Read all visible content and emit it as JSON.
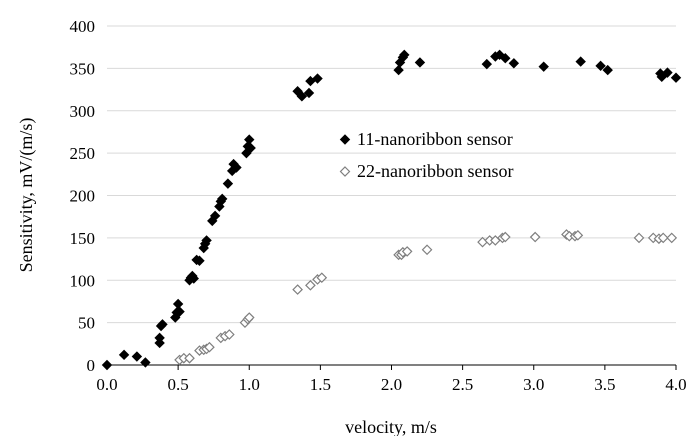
{
  "chart_data": {
    "type": "scatter",
    "title": "",
    "xlabel": "velocity, m/s",
    "ylabel": "Sensitivity, mV/(m/s)",
    "xlim": [
      0,
      4
    ],
    "ylim": [
      0,
      400
    ],
    "xticks": [
      0.0,
      0.5,
      1.0,
      1.5,
      2.0,
      2.5,
      3.0,
      3.5,
      4.0
    ],
    "xtick_labels": [
      "0.0",
      "0.5",
      "1.0",
      "1.5",
      "2.0",
      "2.5",
      "3.0",
      "3.5",
      "4.0"
    ],
    "yticks": [
      0,
      50,
      100,
      150,
      200,
      250,
      300,
      350,
      400
    ],
    "ytick_labels": [
      "0",
      "50",
      "100",
      "150",
      "200",
      "250",
      "300",
      "350",
      "400"
    ],
    "grid": "horizontal",
    "legend_position": "center-right",
    "series": [
      {
        "name": "11-nanoribbon sensor",
        "marker": "filled-diamond",
        "color": "#000000",
        "points": [
          [
            0.0,
            0
          ],
          [
            0.12,
            12
          ],
          [
            0.21,
            10
          ],
          [
            0.27,
            3
          ],
          [
            0.37,
            26
          ],
          [
            0.37,
            32
          ],
          [
            0.38,
            46
          ],
          [
            0.39,
            48
          ],
          [
            0.48,
            56
          ],
          [
            0.49,
            62
          ],
          [
            0.5,
            72
          ],
          [
            0.51,
            63
          ],
          [
            0.58,
            100
          ],
          [
            0.59,
            103
          ],
          [
            0.6,
            105
          ],
          [
            0.61,
            102
          ],
          [
            0.63,
            124
          ],
          [
            0.65,
            123
          ],
          [
            0.68,
            138
          ],
          [
            0.69,
            143
          ],
          [
            0.7,
            147
          ],
          [
            0.74,
            170
          ],
          [
            0.76,
            176
          ],
          [
            0.79,
            187
          ],
          [
            0.8,
            193
          ],
          [
            0.81,
            196
          ],
          [
            0.85,
            214
          ],
          [
            0.88,
            229
          ],
          [
            0.89,
            237
          ],
          [
            0.91,
            233
          ],
          [
            0.98,
            250
          ],
          [
            0.99,
            258
          ],
          [
            1.0,
            266
          ],
          [
            1.01,
            256
          ],
          [
            1.34,
            323
          ],
          [
            1.37,
            317
          ],
          [
            1.42,
            321
          ],
          [
            1.43,
            335
          ],
          [
            1.48,
            338
          ],
          [
            2.05,
            348
          ],
          [
            2.06,
            357
          ],
          [
            2.08,
            363
          ],
          [
            2.09,
            366
          ],
          [
            2.2,
            357
          ],
          [
            2.67,
            355
          ],
          [
            2.73,
            364
          ],
          [
            2.76,
            366
          ],
          [
            2.8,
            362
          ],
          [
            2.86,
            356
          ],
          [
            3.07,
            352
          ],
          [
            3.33,
            358
          ],
          [
            3.47,
            353
          ],
          [
            3.52,
            348
          ],
          [
            3.89,
            344
          ],
          [
            3.9,
            340
          ],
          [
            3.94,
            345
          ],
          [
            4.0,
            339
          ]
        ]
      },
      {
        "name": "22-nanoribbon sensor",
        "marker": "open-diamond",
        "color": "#7f7f7f",
        "points": [
          [
            0.51,
            6
          ],
          [
            0.54,
            8
          ],
          [
            0.58,
            8
          ],
          [
            0.65,
            17
          ],
          [
            0.68,
            18
          ],
          [
            0.7,
            19
          ],
          [
            0.72,
            21
          ],
          [
            0.8,
            32
          ],
          [
            0.83,
            34
          ],
          [
            0.86,
            36
          ],
          [
            0.97,
            50
          ],
          [
            0.99,
            54
          ],
          [
            1.0,
            56
          ],
          [
            1.34,
            89
          ],
          [
            1.43,
            94
          ],
          [
            1.48,
            101
          ],
          [
            1.51,
            103
          ],
          [
            2.05,
            130
          ],
          [
            2.07,
            130
          ],
          [
            2.08,
            133
          ],
          [
            2.11,
            134
          ],
          [
            2.25,
            136
          ],
          [
            2.64,
            145
          ],
          [
            2.69,
            147
          ],
          [
            2.73,
            147
          ],
          [
            2.78,
            150
          ],
          [
            2.8,
            151
          ],
          [
            3.01,
            151
          ],
          [
            3.23,
            154
          ],
          [
            3.25,
            152
          ],
          [
            3.29,
            152
          ],
          [
            3.31,
            153
          ],
          [
            3.74,
            150
          ],
          [
            3.84,
            150
          ],
          [
            3.88,
            149
          ],
          [
            3.91,
            150
          ],
          [
            3.97,
            150
          ]
        ]
      }
    ]
  }
}
